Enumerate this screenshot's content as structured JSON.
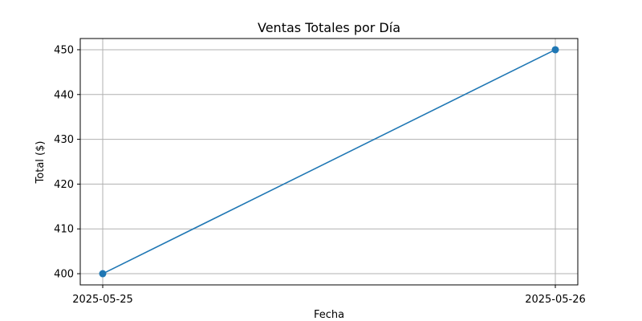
{
  "chart_data": {
    "type": "line",
    "title": "Ventas Totales por Día",
    "xlabel": "Fecha",
    "ylabel": "Total ($)",
    "x": [
      "2025-05-25",
      "2025-05-26"
    ],
    "y": [
      400,
      450
    ],
    "ylim": [
      397.5,
      452.5
    ],
    "yticks": [
      400,
      410,
      420,
      430,
      440,
      450
    ],
    "grid": true,
    "marker": "circle",
    "line_color": "#1f77b4",
    "grid_color": "#b0b0b0"
  }
}
